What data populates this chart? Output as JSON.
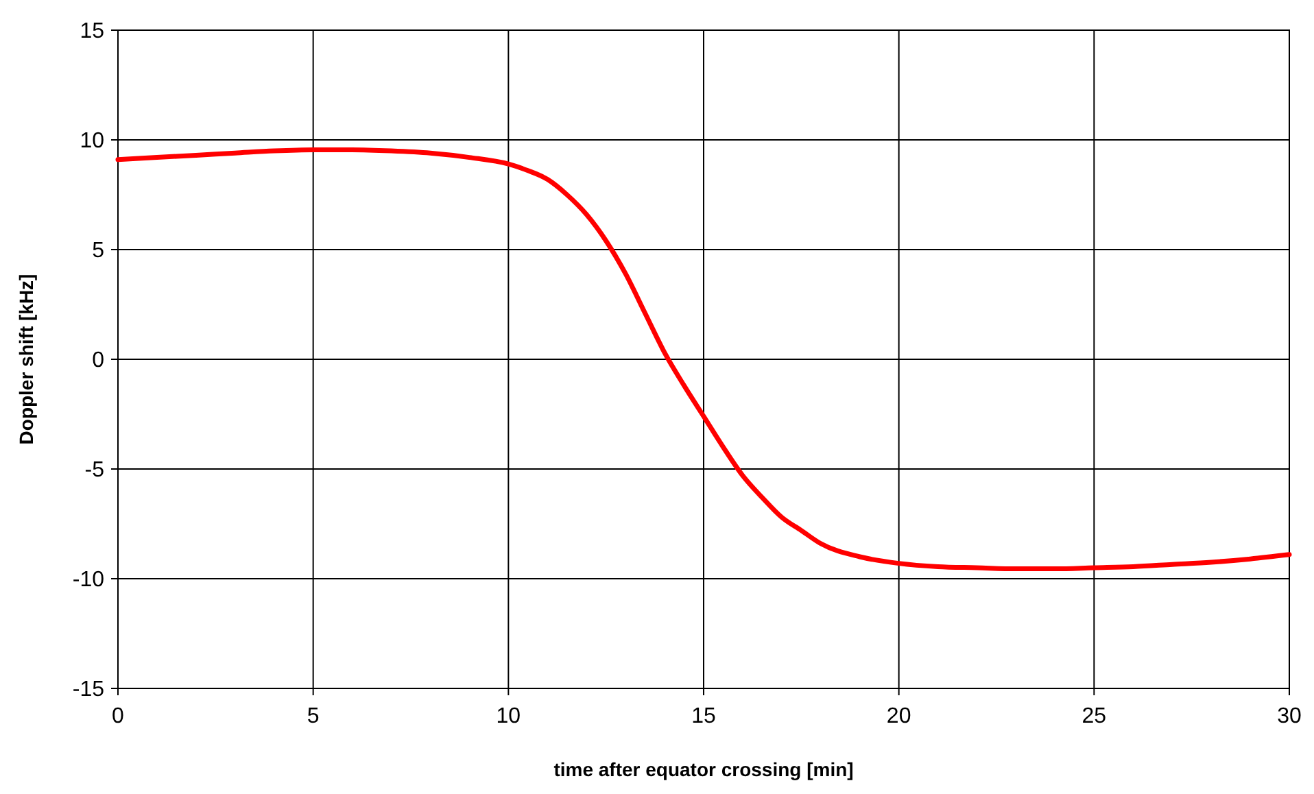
{
  "chart_data": {
    "type": "line",
    "xlabel": "time after equator crossing [min]",
    "ylabel": "Doppler shift [kHz]",
    "xlim": [
      0,
      30
    ],
    "xticks": [
      0,
      5,
      10,
      15,
      20,
      25,
      30
    ],
    "ylim": [
      -15,
      15
    ],
    "yticks": [
      -15,
      -10,
      -5,
      0,
      5,
      10,
      15
    ],
    "grid": true,
    "marker": "none",
    "line_style": "solid",
    "series": [
      {
        "color": "#ff0000",
        "x": [
          0,
          1,
          2,
          3,
          4,
          5,
          6,
          7,
          8,
          9,
          10,
          10.5,
          11,
          11.5,
          12,
          12.5,
          13,
          13.5,
          14,
          14.5,
          15,
          15.5,
          16,
          16.5,
          17,
          17.5,
          18,
          19,
          20,
          21,
          22,
          23,
          24,
          25,
          26,
          27,
          28,
          29,
          30
        ],
        "values": [
          9.1,
          9.2,
          9.3,
          9.4,
          9.5,
          9.55,
          9.55,
          9.5,
          9.4,
          9.2,
          8.9,
          8.6,
          8.2,
          7.5,
          6.6,
          5.4,
          3.9,
          2.1,
          0.3,
          -1.2,
          -2.6,
          -4.0,
          -5.3,
          -6.3,
          -7.2,
          -7.8,
          -8.4,
          -9.0,
          -9.3,
          -9.45,
          -9.5,
          -9.55,
          -9.55,
          -9.5,
          -9.45,
          -9.35,
          -9.25,
          -9.1,
          -8.9
        ]
      }
    ]
  }
}
